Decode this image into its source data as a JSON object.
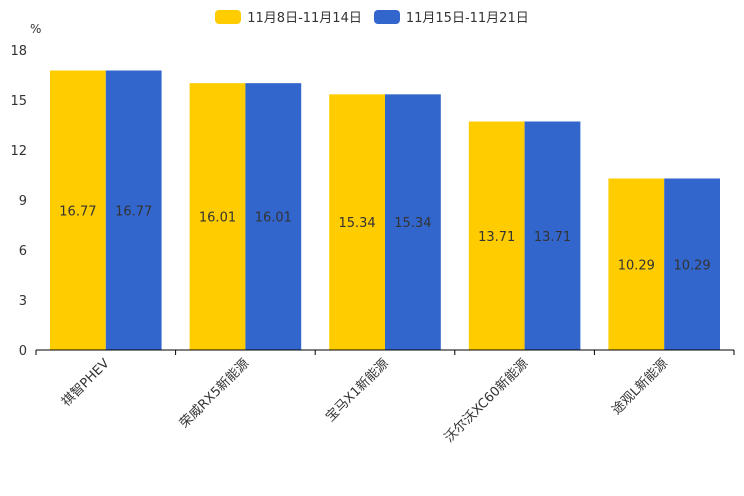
{
  "chart_data": {
    "type": "bar",
    "title": "",
    "ylabel": "%",
    "xlabel": "",
    "ylim": [
      0,
      18
    ],
    "yticks": [
      0,
      3,
      6,
      9,
      12,
      15,
      18
    ],
    "categories": [
      "祺智PHEV",
      "荣威RX5新能源",
      "宝马X1新能源",
      "沃尔沃XC60新能源",
      "途观L新能源"
    ],
    "series": [
      {
        "name": "11月8日-11月14日",
        "color": "#ffcc00",
        "values": [
          16.77,
          16.01,
          15.34,
          13.71,
          10.29
        ]
      },
      {
        "name": "11月15日-11月21日",
        "color": "#3366cc",
        "values": [
          16.77,
          16.01,
          15.34,
          13.71,
          10.29
        ]
      }
    ],
    "legend_position": "top-center",
    "grid": false
  }
}
